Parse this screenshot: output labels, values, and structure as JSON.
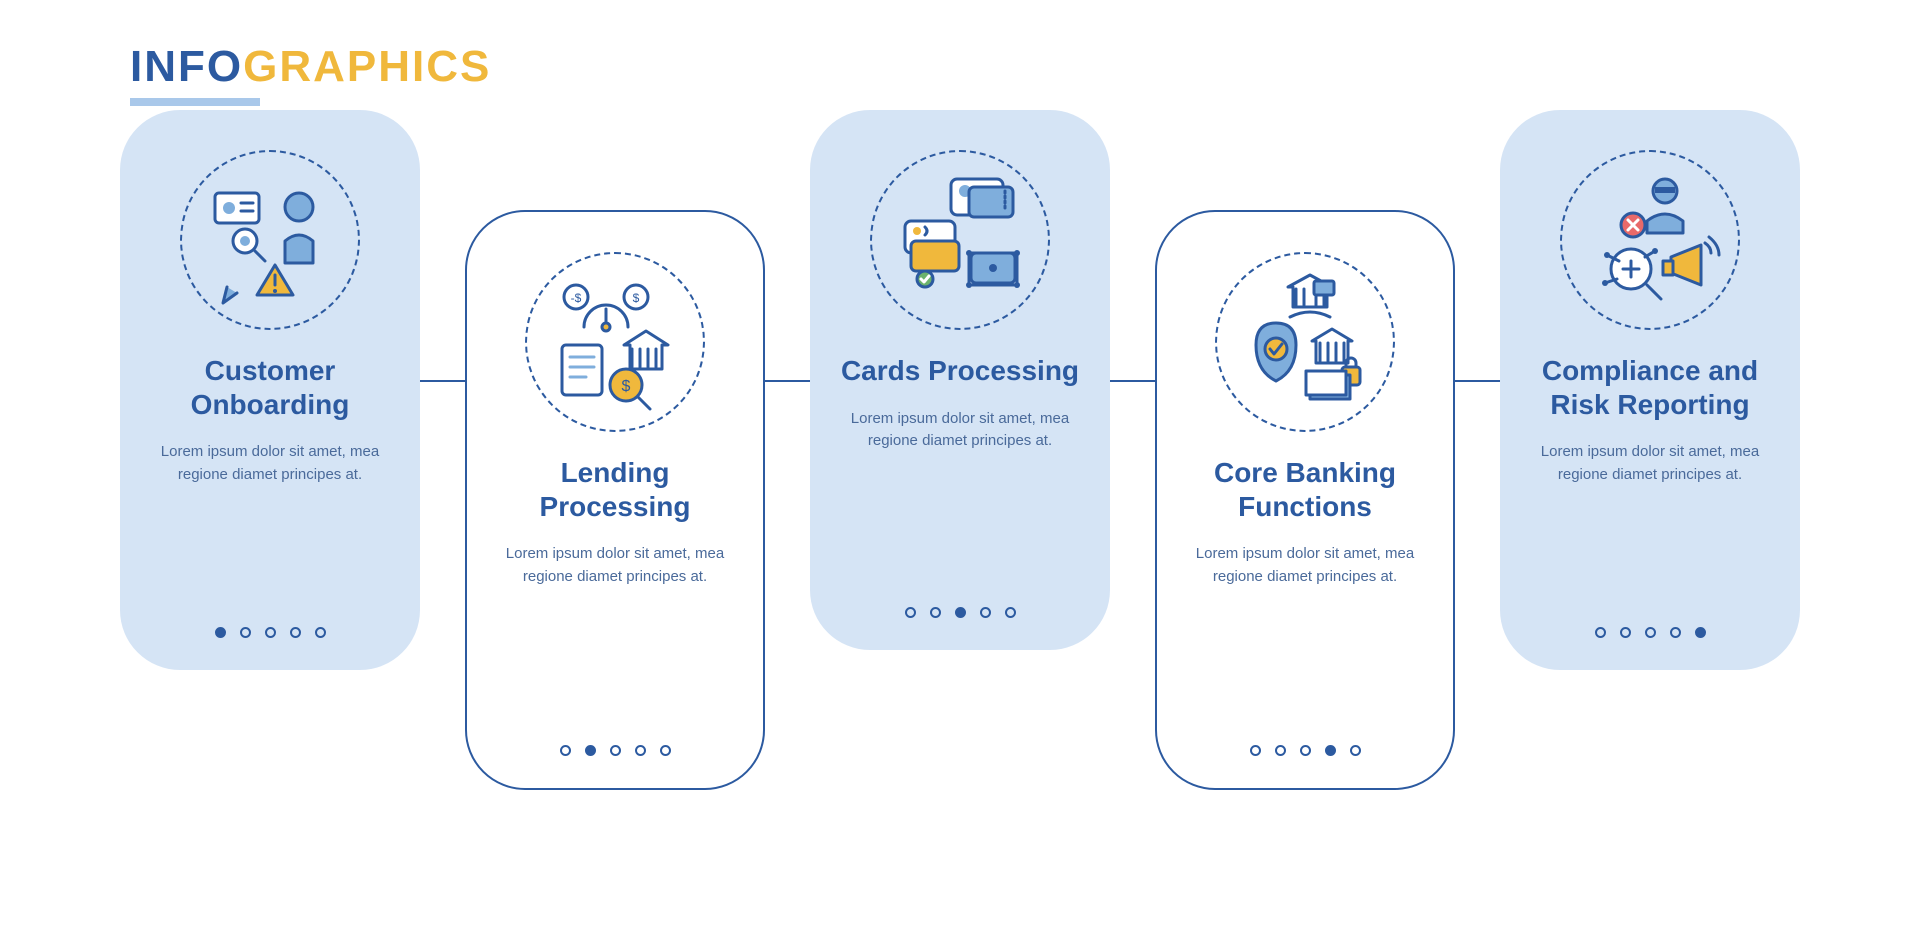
{
  "colors": {
    "blue": "#2c5aa0",
    "yellow": "#f0b83c",
    "lightBlue": "#d5e4f5",
    "underline": "#a9c8ea",
    "bodyText": "#4a6a9a",
    "white": "#ffffff"
  },
  "header": {
    "part1": "INFO",
    "part2": "GRAPHICS"
  },
  "layout": {
    "cardCount": 5,
    "dotsPerCard": 5
  },
  "cards": [
    {
      "title": "Customer Onboarding",
      "body": "Lorem ipsum dolor sit amet, mea regione diamet principes at.",
      "activeDot": 0,
      "variant": "filled",
      "icon": "onboarding"
    },
    {
      "title": "Lending Processing",
      "body": "Lorem ipsum dolor sit amet, mea regione diamet principes at.",
      "activeDot": 1,
      "variant": "outlined",
      "icon": "lending"
    },
    {
      "title": "Cards Processing",
      "body": "Lorem ipsum dolor sit amet, mea regione diamet principes at.",
      "activeDot": 2,
      "variant": "filled center",
      "icon": "cards"
    },
    {
      "title": "Core Banking Functions",
      "body": "Lorem ipsum dolor sit amet, mea regione diamet principes at.",
      "activeDot": 3,
      "variant": "outlined",
      "icon": "banking"
    },
    {
      "title": "Compliance and Risk Reporting",
      "body": "Lorem ipsum dolor sit amet, mea regione diamet principes at.",
      "activeDot": 4,
      "variant": "filled",
      "icon": "compliance"
    }
  ]
}
